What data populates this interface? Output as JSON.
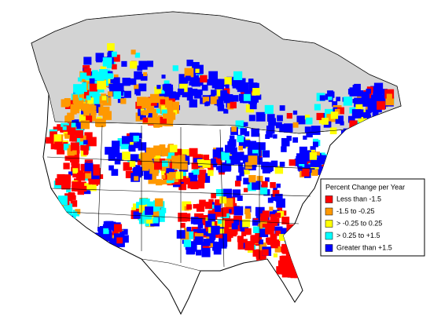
{
  "legend": {
    "title": "Percent Change per Year",
    "items": [
      {
        "label": "Less than -1.5",
        "color": "#ff0000"
      },
      {
        "label": "-1.5 to -0.25",
        "color": "#ff9900"
      },
      {
        "label": "> -0.25 to 0.25",
        "color": "#ffff00"
      },
      {
        "label": "> 0.25 to +1.5",
        "color": "#00ffff"
      },
      {
        "label": "Greater than +1.5",
        "color": "#0000ff"
      }
    ]
  }
}
